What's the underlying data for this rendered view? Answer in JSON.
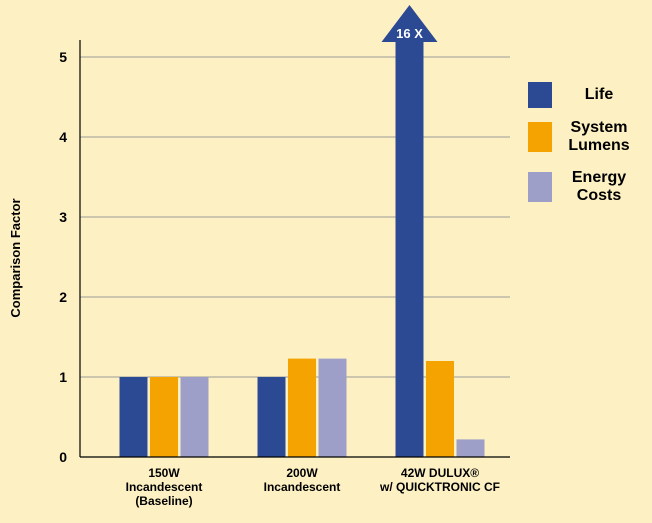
{
  "chart_data": {
    "type": "bar",
    "y_label": "Comparison Factor",
    "categories": [
      "150W\nIncandescent\n(Baseline)",
      "200W\nIncandescent",
      "42W DULUX®\nw/ QUICKTRONIC CF"
    ],
    "series": [
      {
        "name": "Life",
        "color": "#2b4a93",
        "values": [
          1,
          1,
          16
        ],
        "value_labels": [
          null,
          null,
          "16 X"
        ]
      },
      {
        "name": "System\nLumens",
        "color": "#f5a300",
        "values": [
          1,
          1.23,
          1.2
        ]
      },
      {
        "name": "Energy\nCosts",
        "color": "#9d9fc9",
        "values": [
          1,
          1.23,
          0.22
        ]
      }
    ],
    "ylim": [
      0,
      5
    ],
    "yticks": [
      0,
      1,
      2,
      3,
      4,
      5
    ],
    "grid": true
  }
}
